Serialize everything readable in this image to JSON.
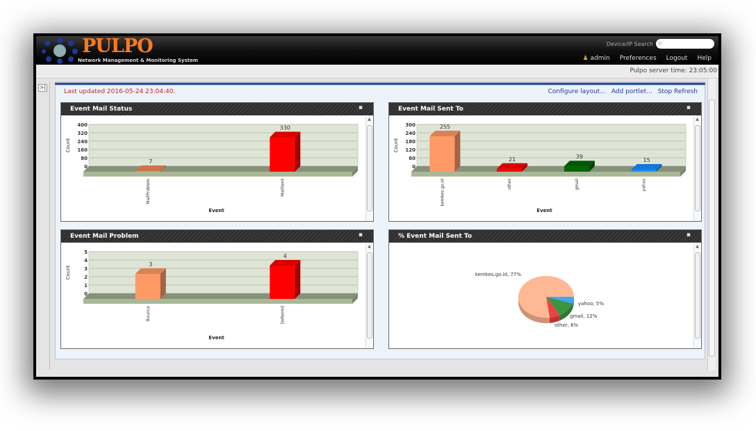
{
  "header": {
    "brand": "PULPO",
    "subtitle": "Network Management & Monitoring System",
    "search_label": "Device/IP Search",
    "search_placeholder": "",
    "user": "admin",
    "nav": [
      "Preferences",
      "Logout",
      "Help"
    ]
  },
  "toolbar": {
    "server_time": "Pulpo server time: 23:05:00"
  },
  "dashboard": {
    "last_updated": "Last updated 2016-05-24 23:04:40.",
    "links": [
      "Configure layout...",
      "Add portlet...",
      "Stop Refresh"
    ],
    "sidebar_toggle": ">|"
  },
  "portlets": [
    {
      "title": "Event Mail Status"
    },
    {
      "title": "Event Mail Sent To"
    },
    {
      "title": "Event Mail Problem"
    },
    {
      "title": "% Event Mail Sent To"
    }
  ],
  "chart_data": [
    {
      "type": "bar",
      "title": "Event Mail Status",
      "xlabel": "Event",
      "ylabel": "Count",
      "ylim": [
        0,
        400
      ],
      "yticks": [
        0,
        80,
        160,
        240,
        320,
        400
      ],
      "categories": [
        "MailProblem",
        "MailSent"
      ],
      "values": [
        7,
        330
      ],
      "colors": [
        "#f08a58",
        "#ff0000"
      ]
    },
    {
      "type": "bar",
      "title": "Event Mail Sent To",
      "xlabel": "Event",
      "ylabel": "Count",
      "ylim": [
        0,
        300
      ],
      "yticks": [
        0,
        60,
        120,
        180,
        240,
        300
      ],
      "categories": [
        "kemkes.go.id",
        "other",
        "gmail",
        "yahoo"
      ],
      "values": [
        255,
        21,
        39,
        15
      ],
      "colors": [
        "#ff9966",
        "#ff0000",
        "#006600",
        "#1a8cff"
      ]
    },
    {
      "type": "bar",
      "title": "Event Mail Problem",
      "xlabel": "Event",
      "ylabel": "Count",
      "ylim": [
        0,
        5
      ],
      "yticks": [
        0,
        1,
        2,
        3,
        4,
        5
      ],
      "categories": [
        "Bounce",
        "Deferred"
      ],
      "values": [
        3,
        4
      ],
      "colors": [
        "#ff9966",
        "#ff0000"
      ]
    },
    {
      "type": "pie",
      "title": "% Event Mail Sent To",
      "labels": [
        "yahoo, 5%",
        "gmail, 12%",
        "other, 6%",
        "kemkes.go.id, 77%"
      ],
      "values": [
        5,
        12,
        6,
        77
      ],
      "colors": [
        "#3aa8ff",
        "#3d9440",
        "#f04040",
        "#ffb894"
      ]
    }
  ]
}
